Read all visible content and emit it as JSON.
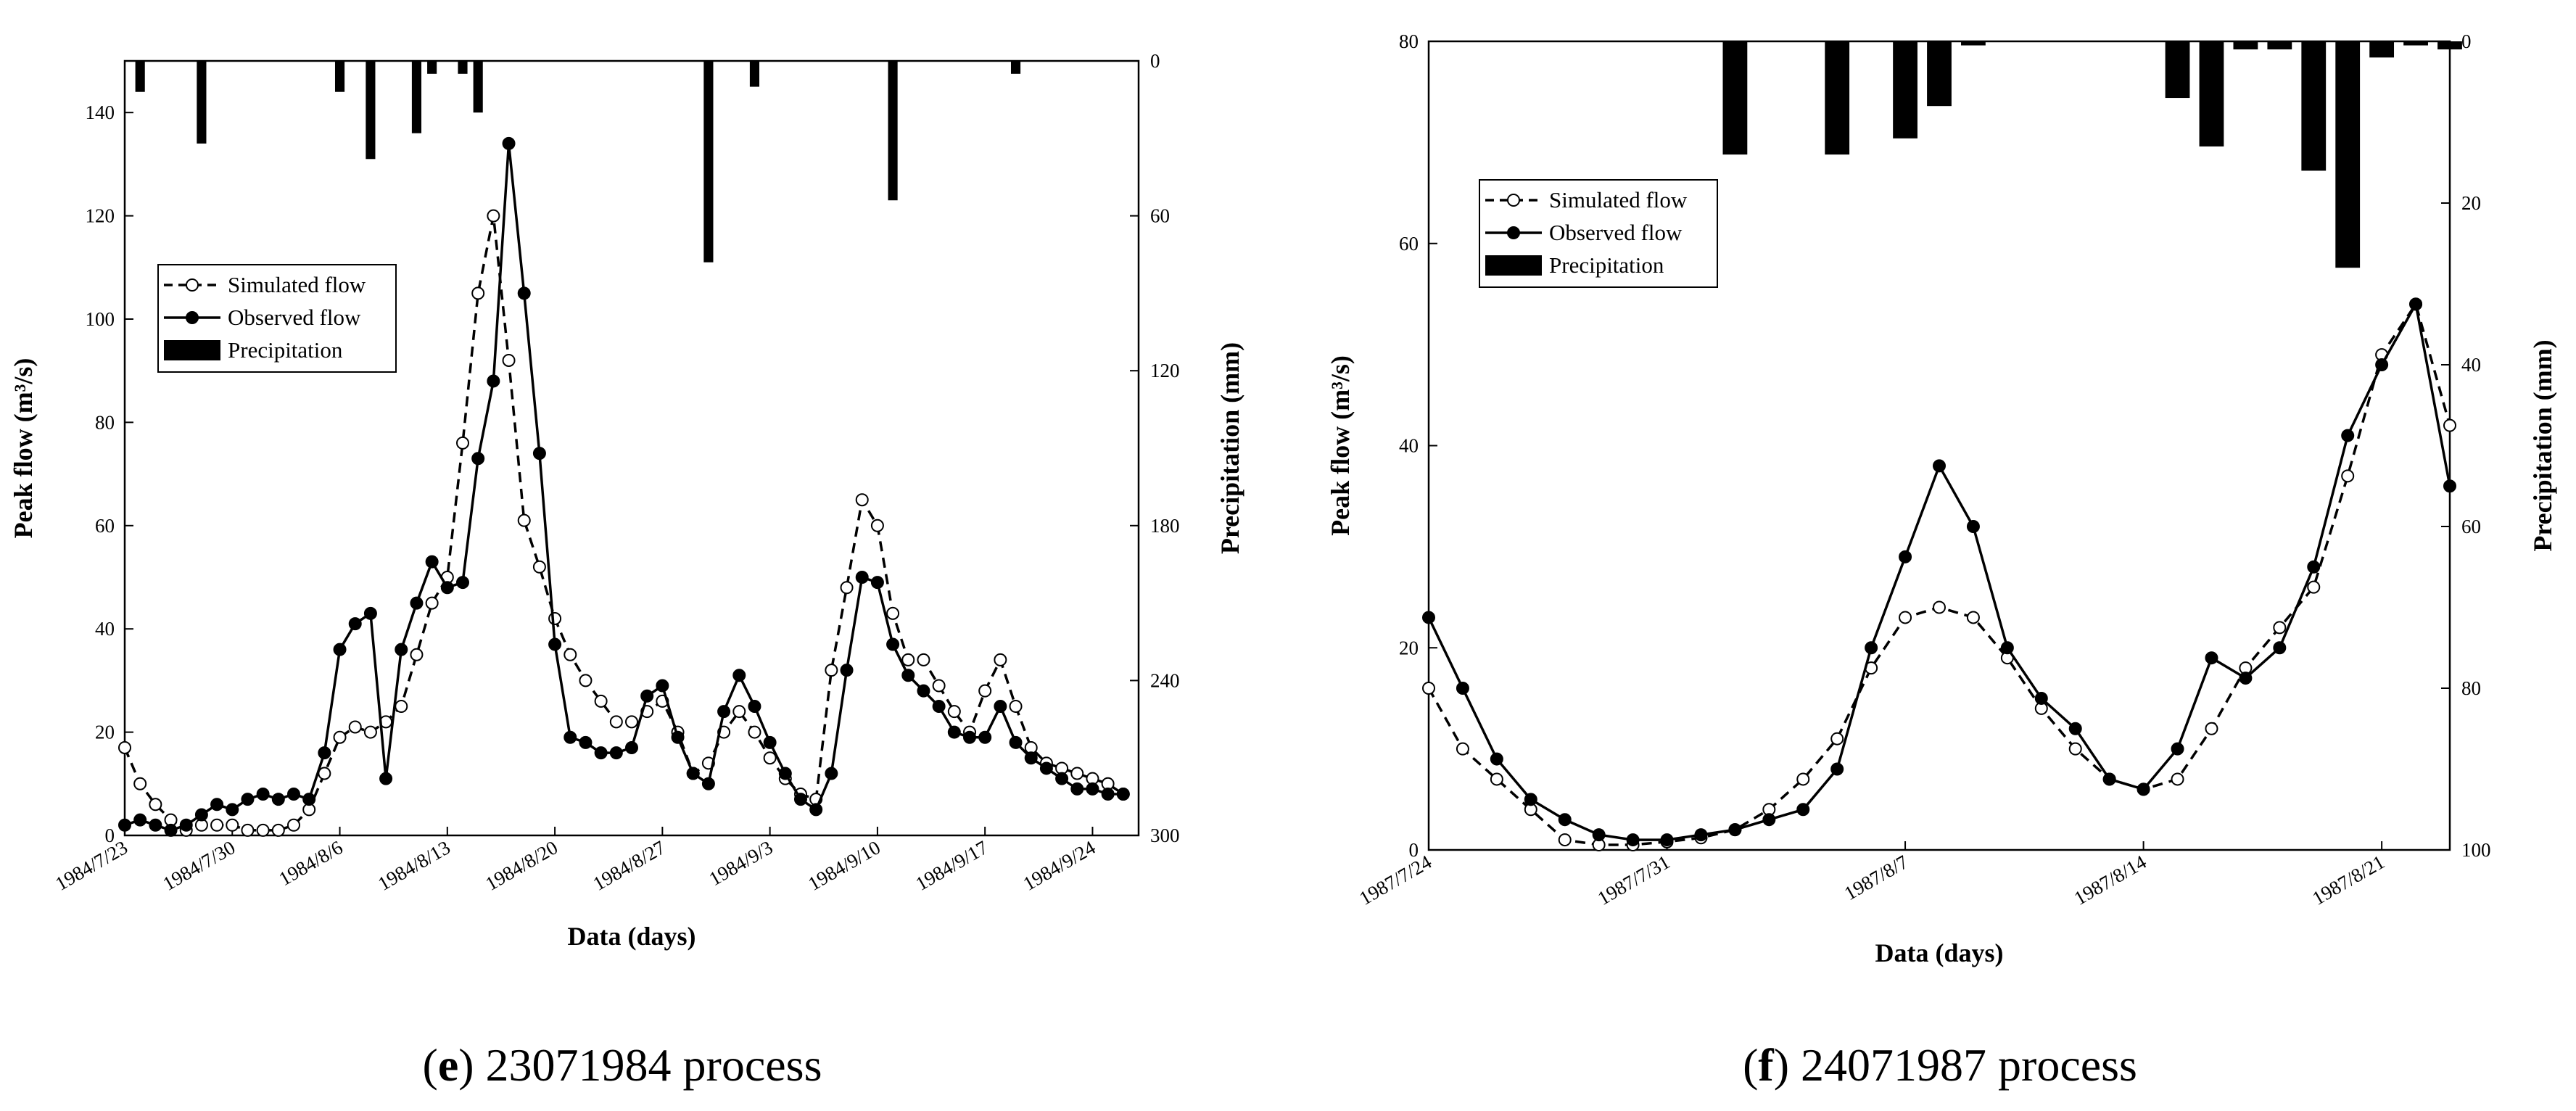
{
  "chart_data": [
    {
      "type": "line",
      "panel_letter": "e",
      "caption_text": "23071984 process",
      "xlabel": "Data (days)",
      "ylabel": "Peak flow (m³/s)",
      "y2label": "Precipitation (mm)",
      "ylim": [
        0,
        150
      ],
      "y_ticks": [
        0,
        20,
        40,
        60,
        80,
        100,
        120,
        140
      ],
      "y2lim": [
        0,
        300
      ],
      "y2_inverted": true,
      "y2_ticks": [
        0,
        60,
        120,
        180,
        240,
        300
      ],
      "x_start_day": 0,
      "x_end_day": 66,
      "x_ticks": [
        {
          "day": 0,
          "label": "1984/7/23"
        },
        {
          "day": 7,
          "label": "1984/7/30"
        },
        {
          "day": 14,
          "label": "1984/8/6"
        },
        {
          "day": 21,
          "label": "1984/8/13"
        },
        {
          "day": 28,
          "label": "1984/8/20"
        },
        {
          "day": 35,
          "label": "1984/8/27"
        },
        {
          "day": 42,
          "label": "1984/9/3"
        },
        {
          "day": 49,
          "label": "1984/9/10"
        },
        {
          "day": 56,
          "label": "1984/9/17"
        },
        {
          "day": 63,
          "label": "1984/9/24"
        }
      ],
      "legend": {
        "position": "upper-left",
        "entries": [
          "Simulated flow",
          "Observed flow",
          "Precipitation"
        ]
      },
      "series": [
        {
          "name": "Simulated flow",
          "style": "dashed-open-circle",
          "x": [
            0,
            1,
            2,
            3,
            4,
            5,
            6,
            7,
            8,
            9,
            10,
            11,
            12,
            13,
            14,
            15,
            16,
            17,
            18,
            19,
            20,
            21,
            22,
            23,
            24,
            25,
            26,
            27,
            28,
            29,
            30,
            31,
            32,
            33,
            34,
            35,
            36,
            37,
            38,
            39,
            40,
            41,
            42,
            43,
            44,
            45,
            46,
            47,
            48,
            49,
            50,
            51,
            52,
            53,
            54,
            55,
            56,
            57,
            58,
            59,
            60,
            61,
            62,
            63,
            64,
            65
          ],
          "values": [
            17,
            10,
            6,
            3,
            1,
            2,
            2,
            2,
            1,
            1,
            1,
            2,
            5,
            12,
            19,
            21,
            20,
            22,
            25,
            35,
            45,
            50,
            76,
            105,
            120,
            92,
            61,
            52,
            42,
            35,
            30,
            26,
            22,
            22,
            24,
            26,
            20,
            12,
            14,
            20,
            24,
            20,
            15,
            11,
            8,
            7,
            32,
            48,
            65,
            60,
            43,
            34,
            34,
            29,
            24,
            20,
            28,
            34,
            25,
            17,
            14,
            13,
            12,
            11,
            10,
            8
          ],
          "note": "approximate values read from chart"
        },
        {
          "name": "Observed flow",
          "style": "solid-filled-circle",
          "x": [
            0,
            1,
            2,
            3,
            4,
            5,
            6,
            7,
            8,
            9,
            10,
            11,
            12,
            13,
            14,
            15,
            16,
            17,
            18,
            19,
            20,
            21,
            22,
            23,
            24,
            25,
            26,
            27,
            28,
            29,
            30,
            31,
            32,
            33,
            34,
            35,
            36,
            37,
            38,
            39,
            40,
            41,
            42,
            43,
            44,
            45,
            46,
            47,
            48,
            49,
            50,
            51,
            52,
            53,
            54,
            55,
            56,
            57,
            58,
            59,
            60,
            61,
            62,
            63,
            64,
            65
          ],
          "values": [
            2,
            3,
            2,
            1,
            2,
            4,
            6,
            5,
            7,
            8,
            7,
            8,
            7,
            16,
            36,
            41,
            43,
            11,
            36,
            45,
            53,
            48,
            49,
            73,
            88,
            134,
            105,
            74,
            37,
            19,
            18,
            16,
            16,
            17,
            27,
            29,
            19,
            12,
            10,
            24,
            31,
            25,
            18,
            12,
            7,
            5,
            12,
            32,
            50,
            49,
            37,
            31,
            28,
            25,
            20,
            19,
            19,
            25,
            18,
            15,
            13,
            11,
            9,
            9,
            8,
            8
          ],
          "note": "approximate values read from chart"
        },
        {
          "name": "Precipitation",
          "style": "bar-inverted-secondary-axis",
          "x": [
            1,
            5,
            14,
            16,
            19,
            20,
            22,
            23,
            38,
            41,
            50,
            58
          ],
          "values": [
            12,
            32,
            12,
            38,
            28,
            5,
            5,
            20,
            78,
            10,
            54,
            5
          ]
        }
      ]
    },
    {
      "type": "line",
      "panel_letter": "f",
      "caption_text": "24071987 process",
      "xlabel": "Data (days)",
      "ylabel": "Peak flow (m³/s)",
      "y2label": "Precipitation (mm)",
      "ylim": [
        0,
        80
      ],
      "y_ticks": [
        0,
        20,
        40,
        60,
        80
      ],
      "y2lim": [
        0,
        100
      ],
      "y2_inverted": true,
      "y2_ticks": [
        0,
        20,
        40,
        60,
        80,
        100
      ],
      "x_start_day": 0,
      "x_end_day": 30,
      "x_ticks": [
        {
          "day": 0,
          "label": "1987/7/24"
        },
        {
          "day": 7,
          "label": "1987/7/31"
        },
        {
          "day": 14,
          "label": "1987/8/7"
        },
        {
          "day": 21,
          "label": "1987/8/14"
        },
        {
          "day": 28,
          "label": "1987/8/21"
        }
      ],
      "legend": {
        "position": "upper-left",
        "entries": [
          "Simulated flow",
          "Observed flow",
          "Precipitation"
        ]
      },
      "series": [
        {
          "name": "Simulated flow",
          "style": "dashed-open-circle",
          "x": [
            0,
            1,
            2,
            3,
            4,
            5,
            6,
            7,
            8,
            9,
            10,
            11,
            12,
            13,
            14,
            15,
            16,
            17,
            18,
            19,
            20,
            21,
            22,
            23,
            24,
            25,
            26,
            27,
            28,
            29,
            30
          ],
          "values": [
            16,
            10,
            7,
            4,
            1,
            0.5,
            0.5,
            0.8,
            1.2,
            2,
            4,
            7,
            11,
            18,
            23,
            24,
            23,
            19,
            14,
            10,
            7,
            6,
            7,
            12,
            18,
            22,
            26,
            37,
            49,
            54,
            42
          ],
          "note": "approximate values read from chart"
        },
        {
          "name": "Observed flow",
          "style": "solid-filled-circle",
          "x": [
            0,
            1,
            2,
            3,
            4,
            5,
            6,
            7,
            8,
            9,
            10,
            11,
            12,
            13,
            14,
            15,
            16,
            17,
            18,
            19,
            20,
            21,
            22,
            23,
            24,
            25,
            26,
            27,
            28,
            29,
            30
          ],
          "values": [
            23,
            16,
            9,
            5,
            3,
            1.5,
            1,
            1,
            1.5,
            2,
            3,
            4,
            8,
            20,
            29,
            38,
            32,
            20,
            15,
            12,
            7,
            6,
            10,
            19,
            17,
            20,
            28,
            41,
            48,
            54,
            36
          ],
          "note": "approximate values read from chart"
        },
        {
          "name": "Precipitation",
          "style": "bar-inverted-secondary-axis",
          "x": [
            9,
            12,
            14,
            15,
            16,
            22,
            23,
            24,
            25,
            26,
            27,
            28,
            29,
            30
          ],
          "values": [
            14,
            14,
            12,
            8,
            0.5,
            7,
            13,
            1,
            1,
            16,
            28,
            2,
            0.5,
            1
          ]
        }
      ]
    }
  ]
}
